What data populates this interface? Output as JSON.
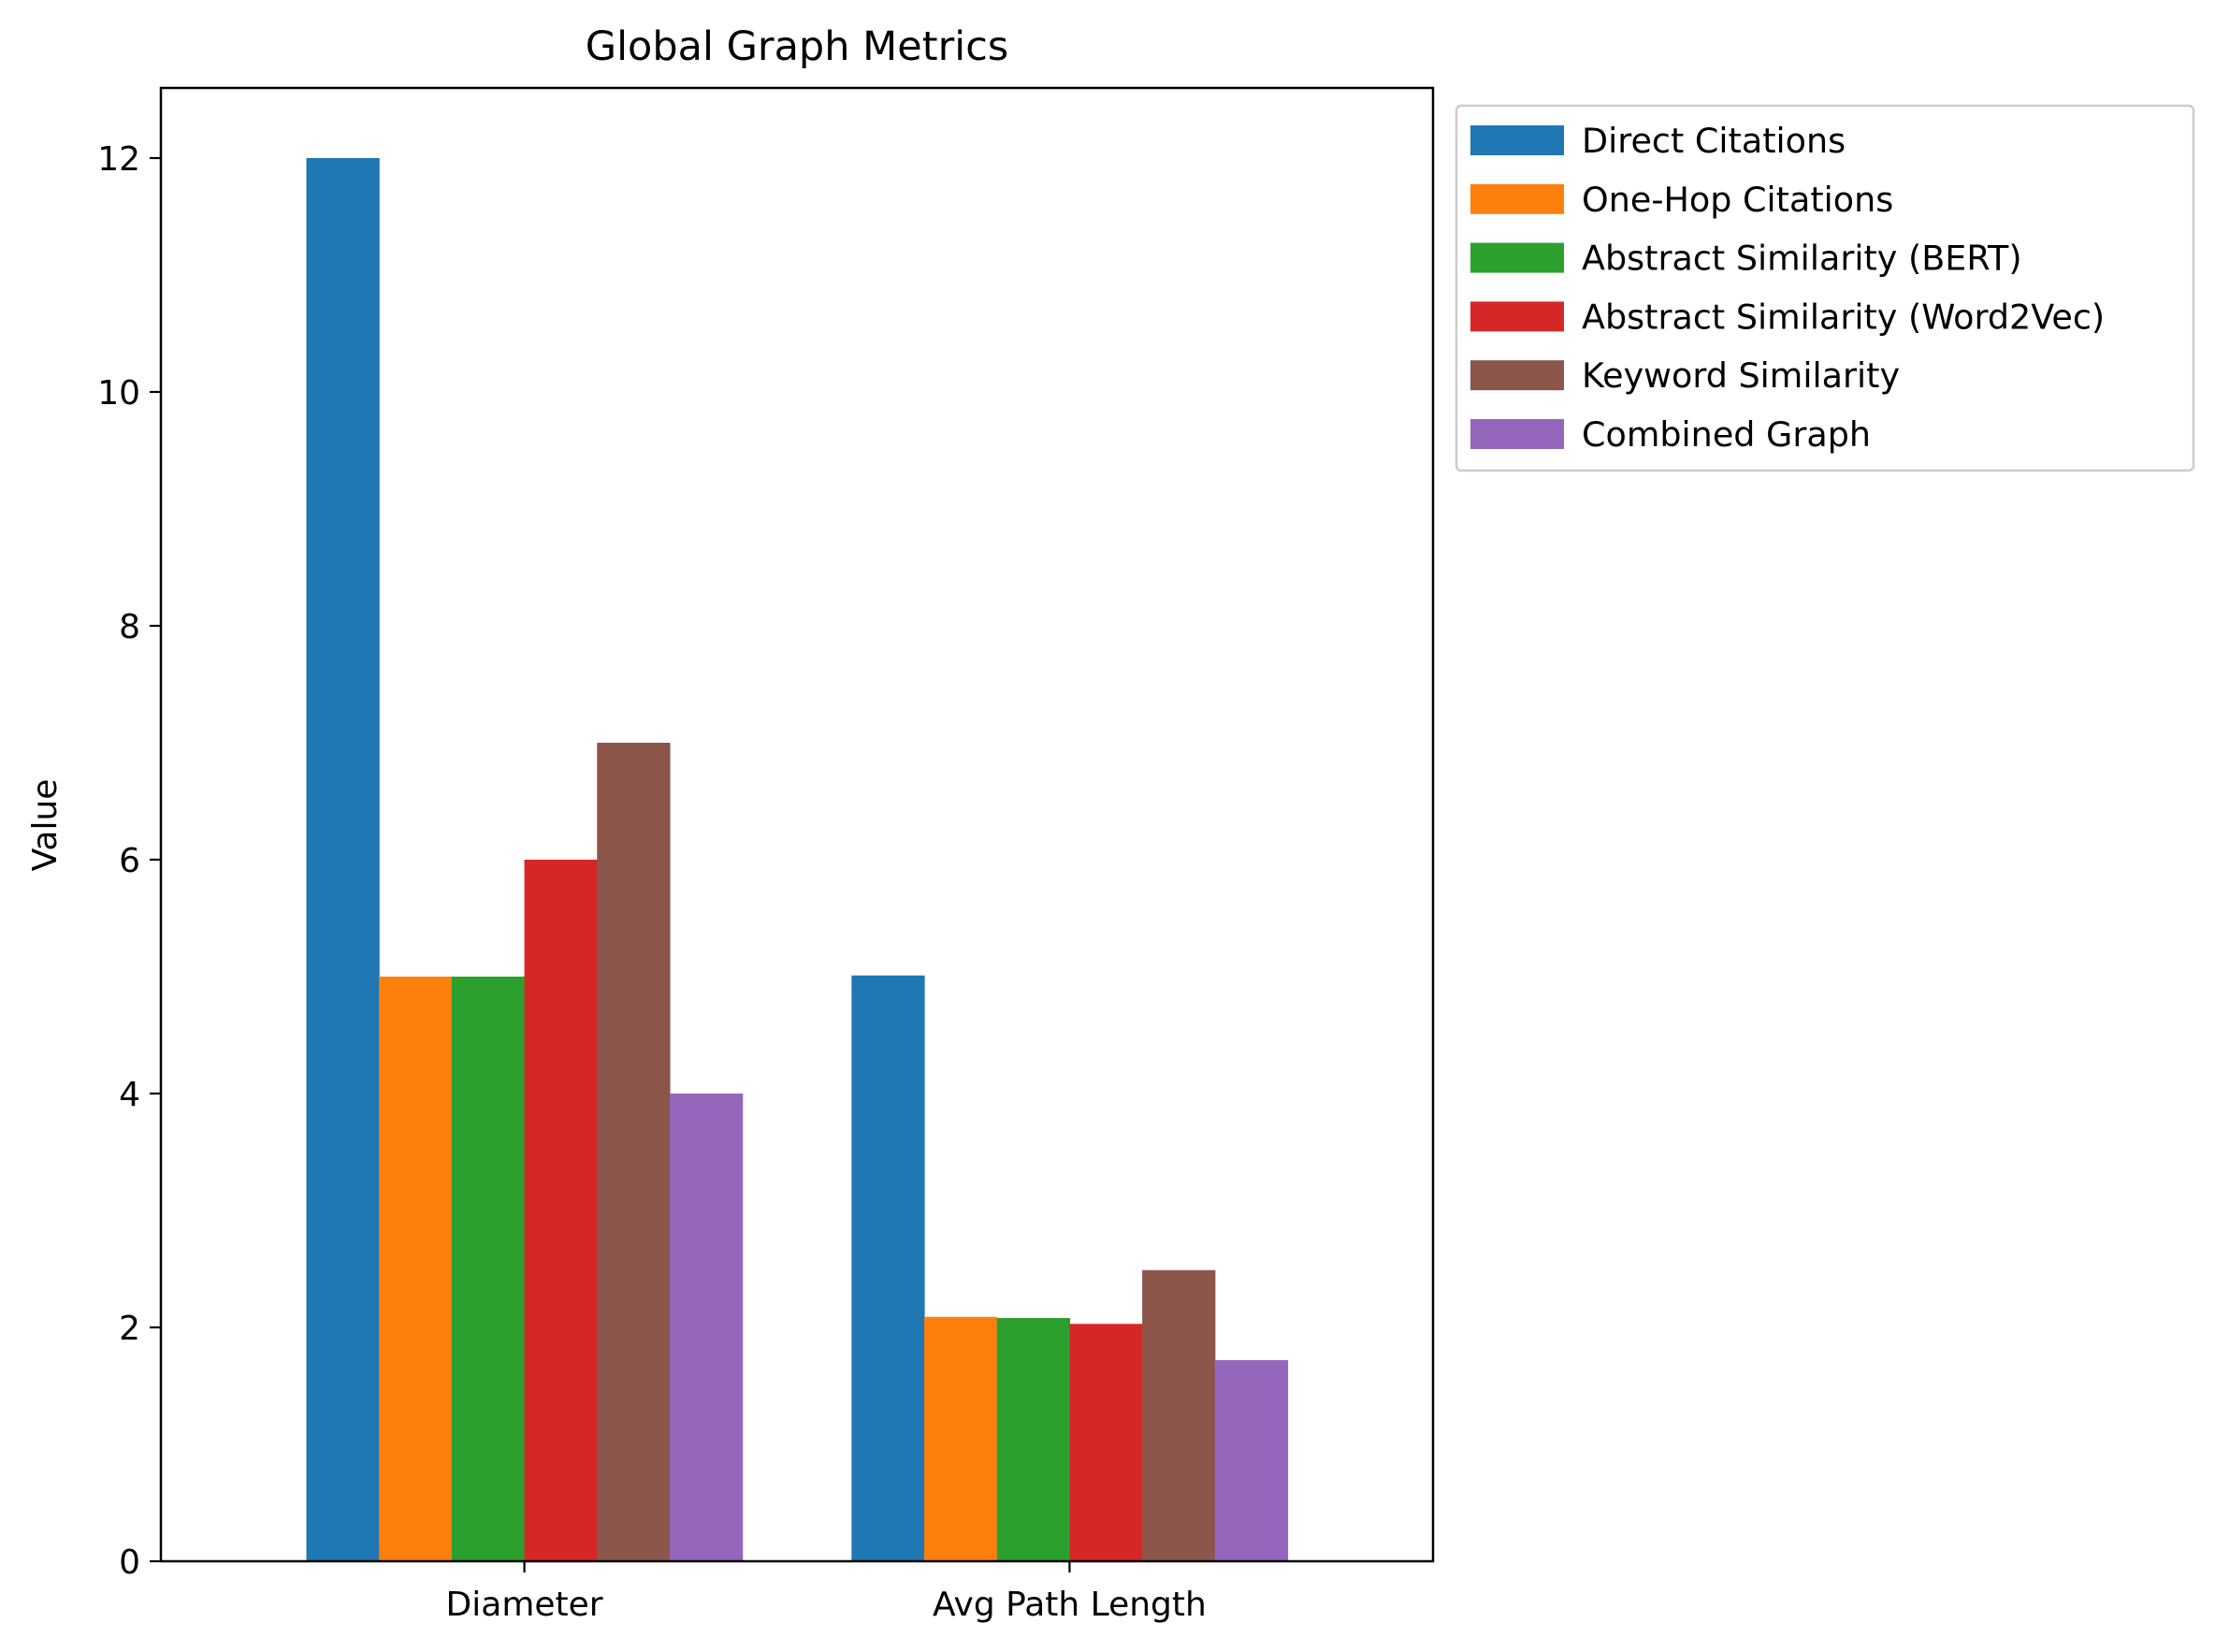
{
  "chart_data": {
    "type": "bar",
    "title": "Global Graph Metrics",
    "xlabel": "",
    "ylabel": "Value",
    "ylim": [
      0,
      12.6
    ],
    "yticks": [
      0,
      2,
      4,
      6,
      8,
      10,
      12
    ],
    "grid": false,
    "legend_position": "outside-right",
    "categories": [
      "Diameter",
      "Avg Path Length"
    ],
    "series": [
      {
        "name": "Direct Citations",
        "color": "#1f77b4",
        "values": [
          12,
          5.01
        ]
      },
      {
        "name": "One-Hop Citations",
        "color": "#ff7f0e",
        "values": [
          5,
          2.09
        ]
      },
      {
        "name": "Abstract Similarity (BERT)",
        "color": "#2ca02c",
        "values": [
          5,
          2.08
        ]
      },
      {
        "name": "Abstract Similarity (Word2Vec)",
        "color": "#d62728",
        "values": [
          6,
          2.03
        ]
      },
      {
        "name": "Keyword Similarity",
        "color": "#8c564b",
        "values": [
          7,
          2.49
        ]
      },
      {
        "name": "Combined Graph",
        "color": "#9467bd",
        "values": [
          4,
          1.72
        ]
      }
    ]
  }
}
